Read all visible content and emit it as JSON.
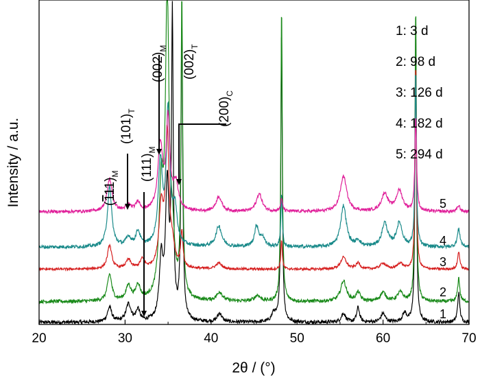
{
  "chart_data": {
    "type": "line",
    "xlabel": "2θ / (°)",
    "ylabel": "Intensity / a.u.",
    "xlim": [
      20,
      70
    ],
    "xticks": [
      20,
      30,
      40,
      50,
      60,
      70
    ],
    "grid": false,
    "legend_position": "top-right",
    "legend_entries": [
      "1: 3 d",
      "2: 98 d",
      "3: 126 d",
      "4: 182 d",
      "5: 294 d"
    ],
    "curve_labels": [
      "1",
      "2",
      "3",
      "4",
      "5"
    ],
    "peak_annotations": [
      {
        "label": "(111)",
        "phase": "M",
        "overline": true,
        "x": 28.2
      },
      {
        "label": "(101)",
        "phase": "T",
        "overline": false,
        "x": 30.4
      },
      {
        "label": "(111)",
        "phase": "M",
        "overline": false,
        "x": 31.5
      },
      {
        "label": "(002)",
        "phase": "M",
        "overline": false,
        "x": 34.2
      },
      {
        "label": "(002)",
        "phase": "T",
        "overline": false,
        "x": 34.8
      },
      {
        "label": "(200)",
        "phase": "C",
        "overline": false,
        "x": 35.9
      }
    ],
    "series": [
      {
        "name": "1",
        "color": "#000000",
        "baseline": 0.0,
        "noise": 0.6,
        "peaks": [
          [
            28.2,
            5,
            0.3
          ],
          [
            30.4,
            6,
            0.35
          ],
          [
            31.5,
            4,
            0.25
          ],
          [
            34.2,
            20,
            0.25
          ],
          [
            34.9,
            45,
            0.25
          ],
          [
            35.5,
            100,
            0.12
          ],
          [
            36.6,
            100,
            0.12
          ],
          [
            41.0,
            3,
            0.3
          ],
          [
            47.3,
            3,
            0.3
          ],
          [
            48.2,
            100,
            0.1
          ],
          [
            55.4,
            3,
            0.3
          ],
          [
            57.1,
            5,
            0.2
          ],
          [
            60.0,
            3,
            0.3
          ],
          [
            62.5,
            3,
            0.3
          ],
          [
            63.8,
            100,
            0.1
          ],
          [
            68.8,
            10,
            0.15
          ]
        ]
      },
      {
        "name": "2",
        "color": "#1a8a1a",
        "baseline": 7.0,
        "noise": 0.6,
        "peaks": [
          [
            28.2,
            9,
            0.3
          ],
          [
            30.4,
            5,
            0.35
          ],
          [
            31.5,
            5,
            0.3
          ],
          [
            34.2,
            35,
            0.3
          ],
          [
            34.9,
            100,
            0.25
          ],
          [
            35.5,
            18,
            0.3
          ],
          [
            36.6,
            100,
            0.12
          ],
          [
            41.0,
            3,
            0.4
          ],
          [
            45.4,
            2,
            0.4
          ],
          [
            48.2,
            100,
            0.1
          ],
          [
            55.4,
            7,
            0.4
          ],
          [
            57.1,
            3,
            0.3
          ],
          [
            60.0,
            3,
            0.4
          ],
          [
            62.0,
            3,
            0.4
          ],
          [
            63.8,
            100,
            0.1
          ],
          [
            68.8,
            8,
            0.15
          ]
        ]
      },
      {
        "name": "3",
        "color": "#d62020",
        "baseline": 18.0,
        "noise": 0.4,
        "peaks": [
          [
            28.2,
            8,
            0.3
          ],
          [
            30.4,
            3,
            0.35
          ],
          [
            32.0,
            3,
            0.3
          ],
          [
            34.2,
            20,
            0.3
          ],
          [
            34.9,
            45,
            0.25
          ],
          [
            35.5,
            6,
            0.3
          ],
          [
            36.6,
            12,
            0.15
          ],
          [
            40.9,
            2,
            0.4
          ],
          [
            48.2,
            10,
            0.1
          ],
          [
            55.4,
            4,
            0.4
          ],
          [
            57.1,
            2,
            0.3
          ],
          [
            60.0,
            2,
            0.4
          ],
          [
            62.0,
            2,
            0.4
          ],
          [
            63.8,
            70,
            0.1
          ],
          [
            68.8,
            6,
            0.15
          ]
        ]
      },
      {
        "name": "4",
        "color": "#1a8a8a",
        "baseline": 25.5,
        "noise": 0.6,
        "peaks": [
          [
            28.2,
            20,
            0.3
          ],
          [
            30.4,
            3,
            0.35
          ],
          [
            31.5,
            5,
            0.3
          ],
          [
            34.1,
            28,
            0.3
          ],
          [
            35.0,
            45,
            0.25
          ],
          [
            35.8,
            12,
            0.3
          ],
          [
            40.9,
            7,
            0.4
          ],
          [
            45.3,
            7,
            0.3
          ],
          [
            46.0,
            3,
            0.3
          ],
          [
            48.2,
            18,
            0.1
          ],
          [
            55.4,
            14,
            0.4
          ],
          [
            57.1,
            2,
            0.3
          ],
          [
            60.2,
            8,
            0.4
          ],
          [
            61.9,
            8,
            0.4
          ],
          [
            63.8,
            60,
            0.1
          ],
          [
            68.8,
            6,
            0.2
          ]
        ]
      },
      {
        "name": "5",
        "color": "#e0209a",
        "baseline": 37.5,
        "noise": 0.5,
        "peaks": [
          [
            28.2,
            11,
            0.35
          ],
          [
            30.4,
            2,
            0.35
          ],
          [
            31.5,
            3,
            0.3
          ],
          [
            34.1,
            22,
            0.35
          ],
          [
            35.0,
            30,
            0.25
          ],
          [
            35.9,
            9,
            0.35
          ],
          [
            40.9,
            5,
            0.4
          ],
          [
            45.6,
            6,
            0.4
          ],
          [
            48.2,
            4,
            0.15
          ],
          [
            55.4,
            12,
            0.45
          ],
          [
            60.2,
            6,
            0.45
          ],
          [
            61.9,
            7,
            0.45
          ],
          [
            63.8,
            32,
            0.12
          ],
          [
            68.8,
            2,
            0.2
          ]
        ]
      }
    ]
  }
}
